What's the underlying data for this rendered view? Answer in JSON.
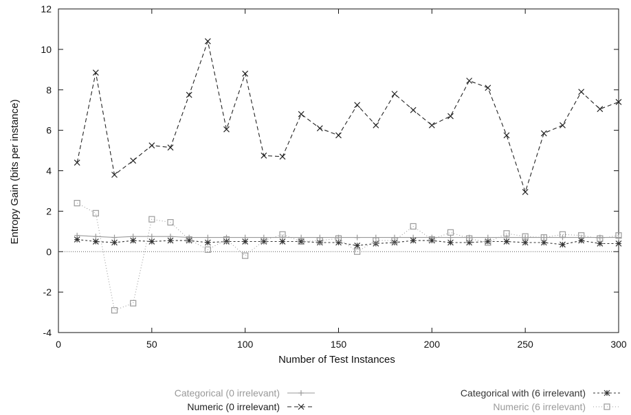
{
  "chart_data": {
    "type": "line",
    "title": "",
    "xlabel": "Number of Test Instances",
    "ylabel": "Entropy Gain (bits per instance)",
    "xlim": [
      0,
      300
    ],
    "ylim": [
      -4,
      12
    ],
    "x_ticks": [
      0,
      50,
      100,
      150,
      200,
      250,
      300
    ],
    "y_ticks": [
      -4,
      -2,
      0,
      2,
      4,
      6,
      8,
      10,
      12
    ],
    "grid": false,
    "zero_line": true,
    "legend_position": "bottom",
    "x": [
      10,
      20,
      30,
      40,
      50,
      60,
      70,
      80,
      90,
      100,
      110,
      120,
      130,
      140,
      150,
      160,
      170,
      180,
      190,
      200,
      210,
      220,
      230,
      240,
      250,
      260,
      270,
      280,
      290,
      300
    ],
    "series": [
      {
        "name": "Categorical (0 irrelevant)",
        "color": "#999999",
        "dash": "none",
        "marker": "plus",
        "values": [
          0.8,
          0.75,
          0.7,
          0.75,
          0.75,
          0.75,
          0.7,
          0.7,
          0.7,
          0.7,
          0.7,
          0.7,
          0.7,
          0.7,
          0.7,
          0.7,
          0.7,
          0.7,
          0.7,
          0.7,
          0.7,
          0.7,
          0.7,
          0.7,
          0.7,
          0.7,
          0.7,
          0.7,
          0.7,
          0.7
        ]
      },
      {
        "name": "Numeric (0 irrelevant)",
        "color": "#222222",
        "dash": "6,4",
        "marker": "x",
        "values": [
          4.4,
          8.85,
          3.8,
          4.5,
          5.25,
          5.15,
          7.75,
          10.4,
          6.05,
          8.8,
          4.75,
          4.7,
          6.8,
          6.1,
          5.75,
          7.25,
          6.25,
          7.8,
          7.0,
          6.25,
          6.7,
          8.45,
          8.1,
          5.75,
          2.95,
          5.85,
          6.25,
          7.9,
          7.05,
          7.4
        ]
      },
      {
        "name": "Categorical with (6 irrelevant)",
        "color": "#333333",
        "dash": "3,3",
        "marker": "star",
        "values": [
          0.6,
          0.5,
          0.45,
          0.55,
          0.5,
          0.55,
          0.55,
          0.45,
          0.5,
          0.5,
          0.5,
          0.5,
          0.5,
          0.45,
          0.45,
          0.3,
          0.4,
          0.45,
          0.55,
          0.55,
          0.45,
          0.45,
          0.5,
          0.5,
          0.45,
          0.45,
          0.35,
          0.55,
          0.4,
          0.4
        ]
      },
      {
        "name": "Numeric (6 irrelevant)",
        "color": "#9a9a9a",
        "dash": "1,3",
        "marker": "square",
        "values": [
          2.4,
          1.9,
          -2.9,
          -2.55,
          1.6,
          1.45,
          0.6,
          0.1,
          0.6,
          -0.2,
          0.55,
          0.85,
          0.5,
          0.55,
          0.65,
          0.0,
          0.55,
          0.55,
          1.25,
          0.6,
          0.95,
          0.65,
          0.45,
          0.9,
          0.75,
          0.7,
          0.85,
          0.8,
          0.65,
          0.8
        ]
      }
    ]
  }
}
